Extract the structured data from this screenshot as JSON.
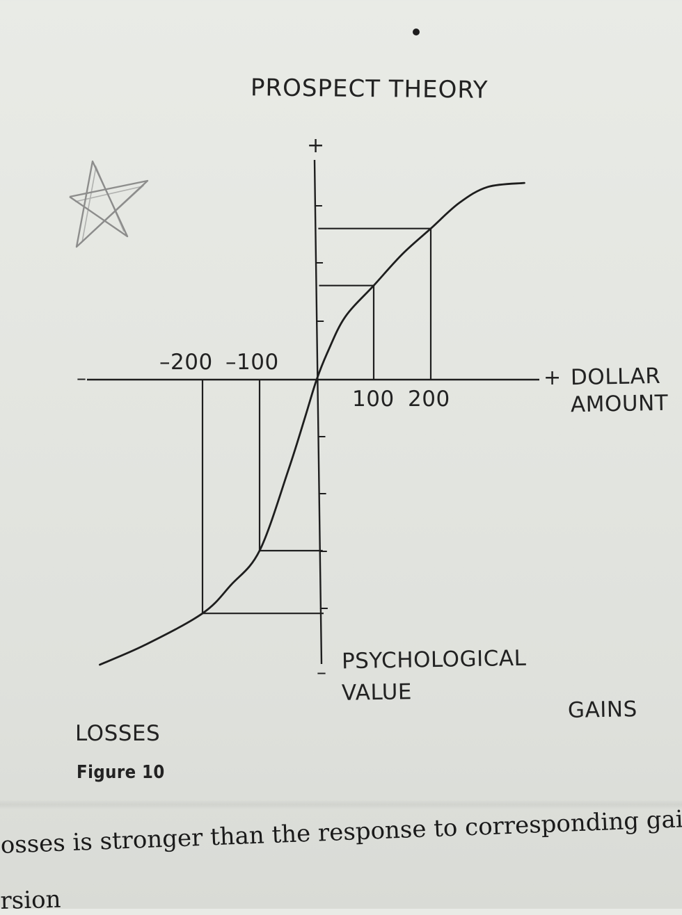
{
  "figure": {
    "title": "PROSPECT THEORY",
    "caption": "Figure 10",
    "labels": {
      "x_axis_line1": "DOLLAR",
      "x_axis_line2": "AMOUNT",
      "y_axis_line1": "PSYCHOLOGICAL",
      "y_axis_line2": "VALUE",
      "losses": "LOSSES",
      "gains": "GAINS",
      "y_plus": "+",
      "y_minus": "–",
      "x_plus": "+",
      "x_minus": "–"
    }
  },
  "chart_data": {
    "type": "line",
    "title": "PROSPECT THEORY",
    "xlabel": "DOLLAR AMOUNT",
    "ylabel": "PSYCHOLOGICAL VALUE",
    "negative_x_ticks": [
      "–200",
      "–100"
    ],
    "positive_x_ticks": [
      "100",
      "200"
    ],
    "xlim": [
      -400,
      450
    ],
    "ylim": [
      -5,
      3.6
    ],
    "grid": false,
    "series": [
      {
        "x": [
          -380,
          -300,
          -200,
          -150,
          -100,
          -50,
          -20,
          0,
          20,
          50,
          100,
          150,
          200,
          250,
          300,
          364
        ],
        "y": [
          -5.0,
          -4.65,
          -4.1,
          -3.6,
          -3.0,
          -1.6,
          -0.65,
          0,
          0.5,
          1.1,
          1.65,
          2.2,
          2.65,
          3.1,
          3.38,
          3.45
        ]
      }
    ],
    "guides": [
      {
        "x": 100,
        "y": 1.65
      },
      {
        "x": 200,
        "y": 2.65
      },
      {
        "x": -100,
        "y": -3.0
      },
      {
        "x": -200,
        "y": -4.1
      }
    ]
  },
  "margin_doodle": "star",
  "page_text": {
    "line1": "osses is stronger than the response to corresponding gains. Th",
    "line2": "rsion"
  }
}
